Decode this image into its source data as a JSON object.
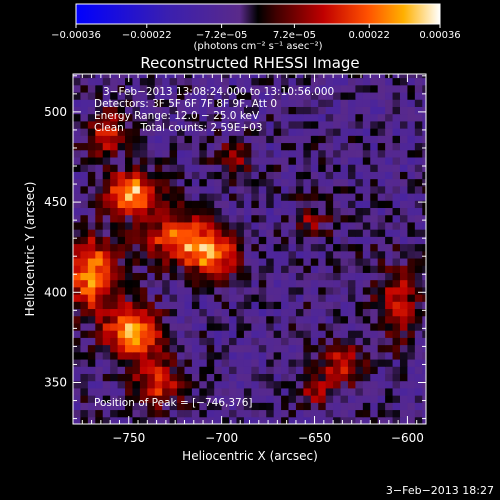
{
  "chart_data": {
    "type": "heatmap",
    "title": "Reconstructed RHESSI Image",
    "xlabel": "Heliocentric X (arcsec)",
    "ylabel": "Heliocentric Y (arcsec)",
    "xlim": [
      -780,
      -590
    ],
    "ylim": [
      327,
      521
    ],
    "x_ticks": [
      -750,
      -700,
      -650,
      -600
    ],
    "x_tick_labels": [
      "−750",
      "−700",
      "−650",
      "−600"
    ],
    "y_ticks": [
      350,
      400,
      450,
      500
    ],
    "y_tick_labels": [
      "350",
      "400",
      "450",
      "500"
    ],
    "colorbar": {
      "range": [
        -0.00036,
        0.00036
      ],
      "ticks": [
        -0.00036,
        -0.00022,
        -7.2e-05,
        7.2e-05,
        0.00022,
        0.00036
      ],
      "tick_labels": [
        "−0.00036",
        "−0.00022",
        "−7.2e−05",
        "7.2e−05",
        "0.00022",
        "0.00036"
      ],
      "unit_text": "(photons cm⁻² s⁻¹ asec⁻²)"
    },
    "annotations": [
      "3−Feb−2013 13:08:24.000 to 13:10:56.000",
      "Detectors: 3F 5F 6F 7F 8F 9F, Att 0",
      "Energy Range: 12.0 − 25.0 keV",
      "Clean     Total counts: 2.59E+03"
    ],
    "peak_label": "Position of Peak = [−746,376]",
    "peak_position": [
      -746,
      376
    ],
    "grid": false,
    "bright_regions": [
      {
        "x": -748,
        "y": 455,
        "sx": 10,
        "sy": 8,
        "v": 0.00034
      },
      {
        "x": -770,
        "y": 410,
        "sx": 9,
        "sy": 14,
        "v": 0.00032
      },
      {
        "x": -748,
        "y": 378,
        "sx": 10,
        "sy": 10,
        "v": 0.00036
      },
      {
        "x": -722,
        "y": 430,
        "sx": 14,
        "sy": 9,
        "v": 0.00028
      },
      {
        "x": -705,
        "y": 420,
        "sx": 10,
        "sy": 8,
        "v": 0.00024
      },
      {
        "x": -735,
        "y": 350,
        "sx": 9,
        "sy": 9,
        "v": 0.00022
      },
      {
        "x": -762,
        "y": 488,
        "sx": 8,
        "sy": 8,
        "v": 0.0002
      },
      {
        "x": -693,
        "y": 475,
        "sx": 6,
        "sy": 6,
        "v": 0.00016
      },
      {
        "x": -605,
        "y": 395,
        "sx": 8,
        "sy": 14,
        "v": 0.00018
      },
      {
        "x": -635,
        "y": 360,
        "sx": 9,
        "sy": 9,
        "v": 0.00017
      },
      {
        "x": -652,
        "y": 440,
        "sx": 7,
        "sy": 7,
        "v": 0.00012
      },
      {
        "x": -650,
        "y": 345,
        "sx": 6,
        "sy": 6,
        "v": 0.00014
      }
    ]
  },
  "footer_timestamp": "3−Feb−2013 18:27"
}
